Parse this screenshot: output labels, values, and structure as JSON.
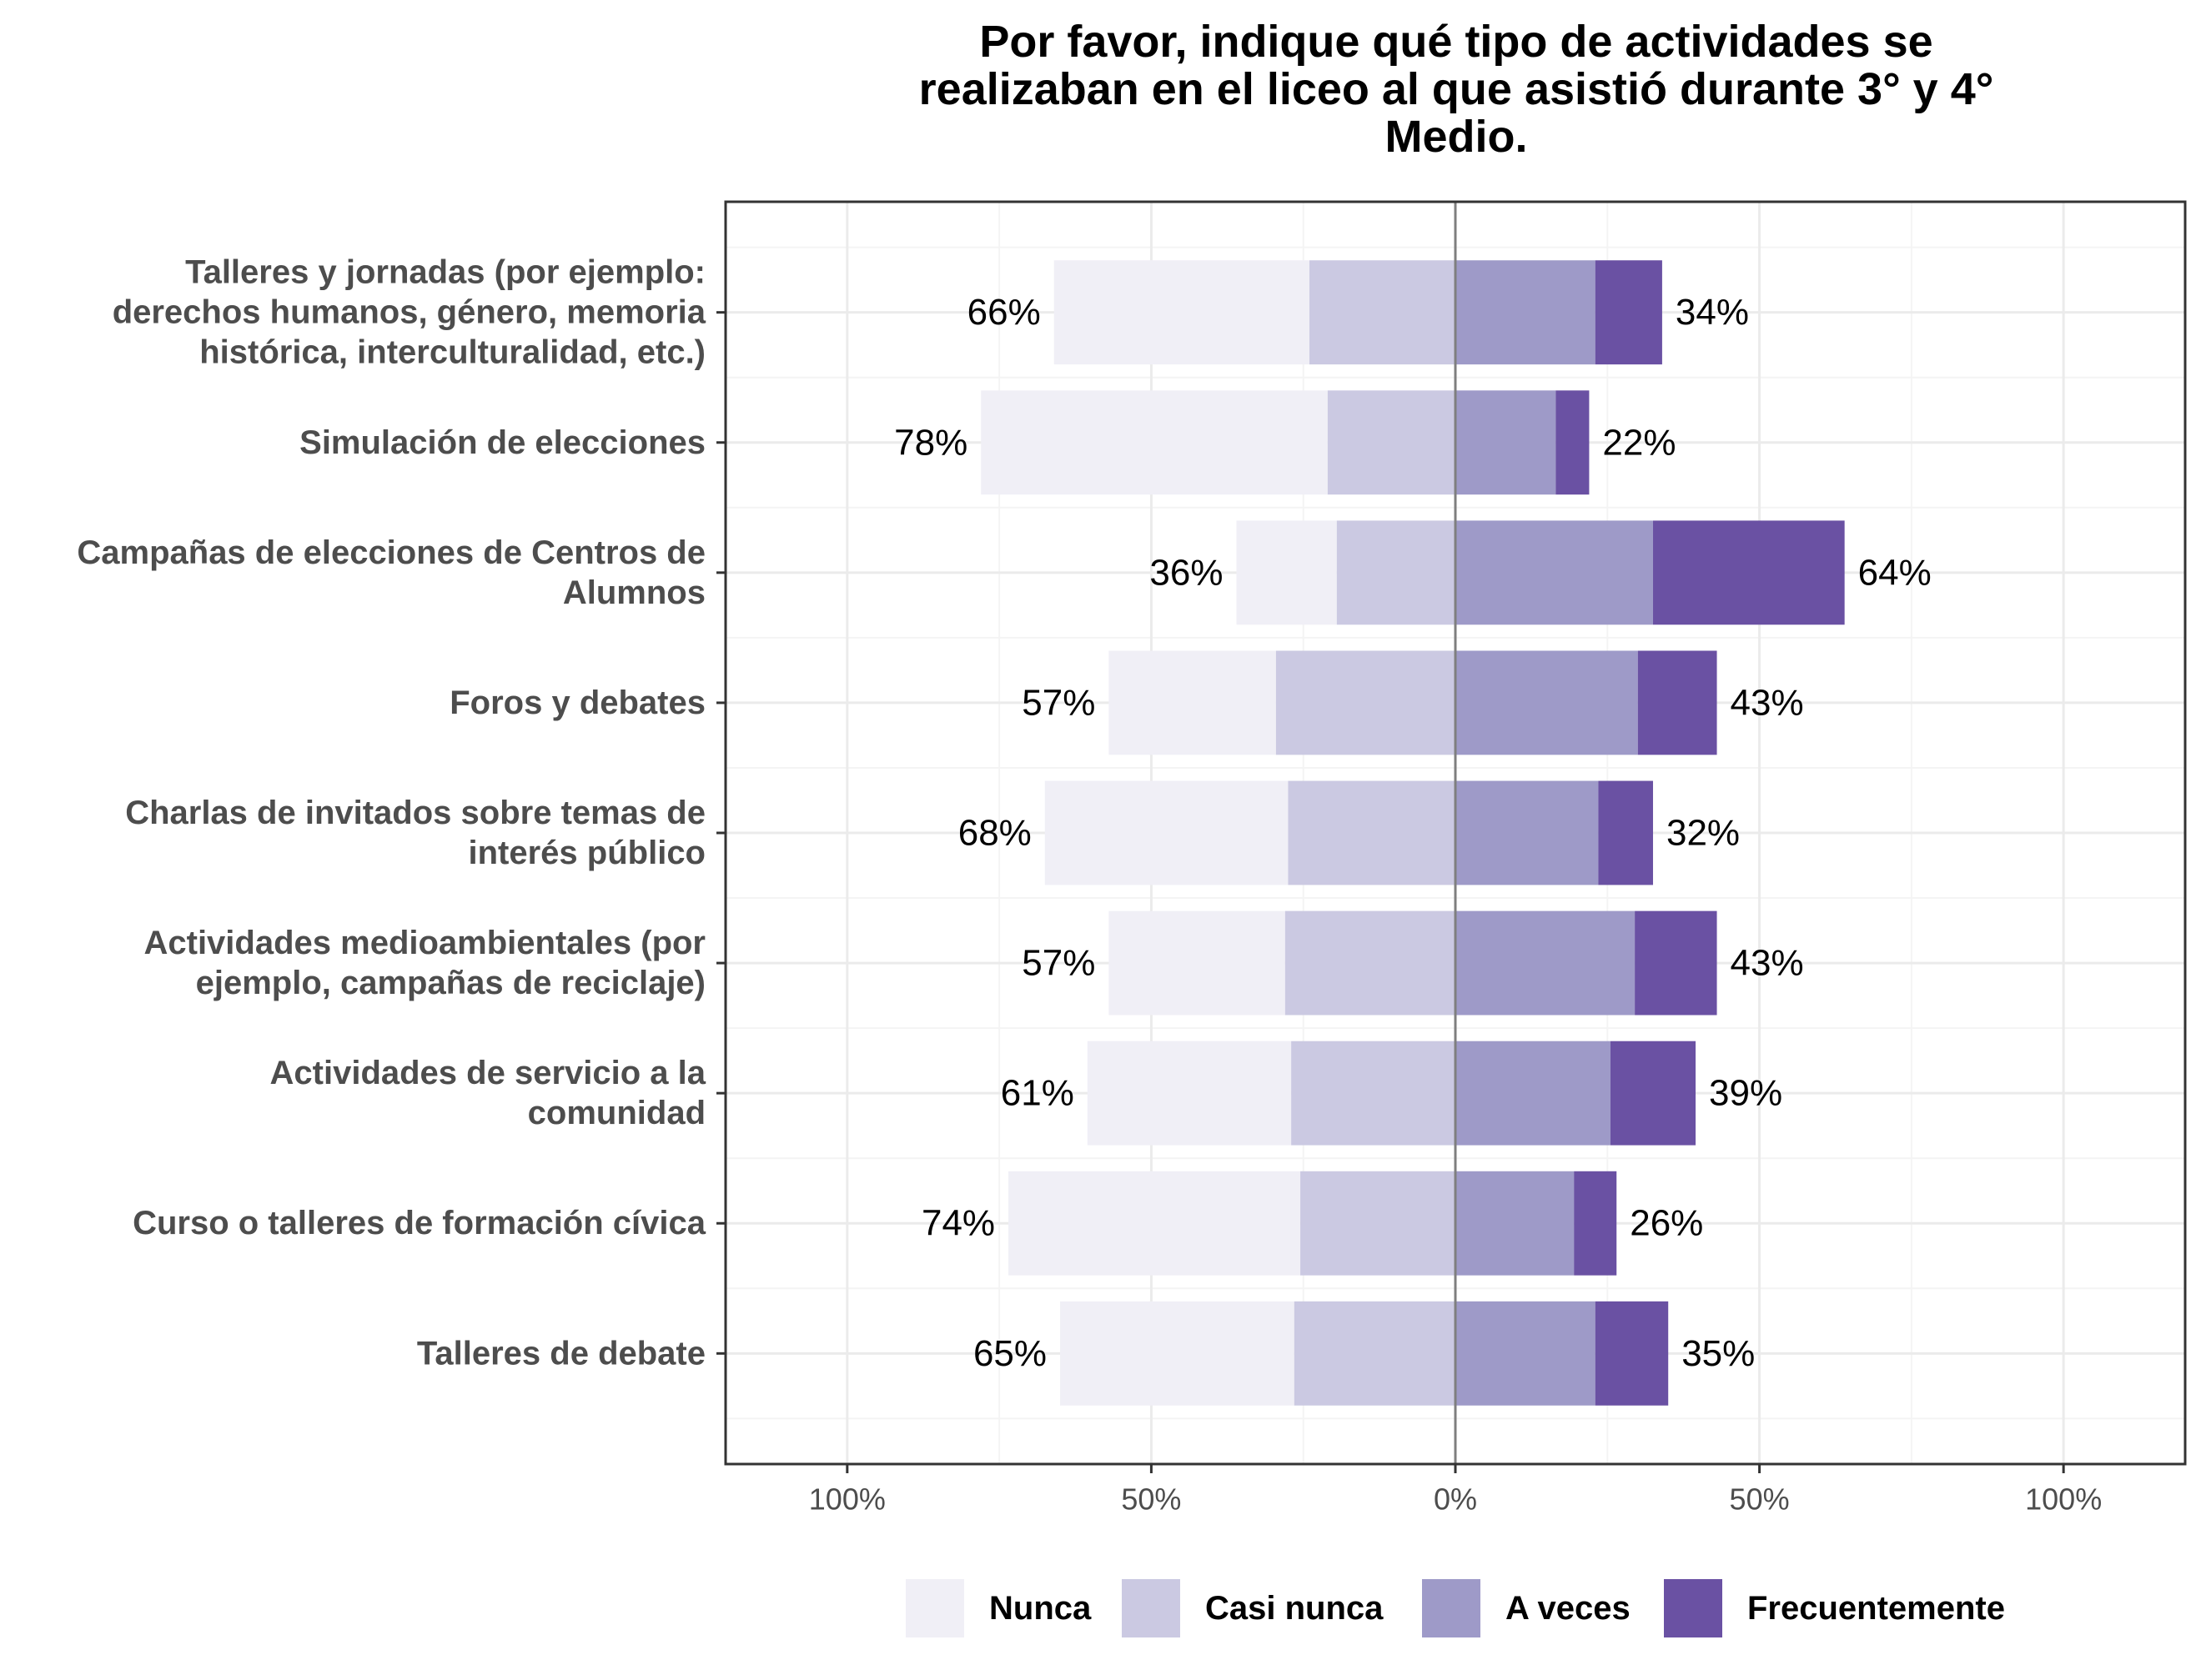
{
  "chart_data": {
    "type": "bar",
    "orientation": "horizontal-diverging",
    "title": [
      "Por favor, indique qué tipo de actividades se",
      "realizaban en el liceo al que asistió durante 3° y 4°",
      "Medio."
    ],
    "xlim": [
      -120,
      120
    ],
    "x_ticks": [
      -100,
      -50,
      0,
      50,
      100
    ],
    "x_tick_labels": [
      "100%",
      "50%",
      "0%",
      "50%",
      "100%"
    ],
    "grid": true,
    "legend_position": "bottom",
    "categories": [
      {
        "label": [
          "Talleres y jornadas (por ejemplo:",
          "derechos humanos, género, memoria",
          "histórica, interculturalidad, etc.)"
        ],
        "values": [
          42,
          24,
          23,
          11
        ],
        "left_label": "66%",
        "right_label": "34%"
      },
      {
        "label": [
          "Simulación de elecciones"
        ],
        "values": [
          57,
          21,
          16.5,
          5.5
        ],
        "left_label": "78%",
        "right_label": "22%"
      },
      {
        "label": [
          "Campañas de elecciones de Centros de",
          "Alumnos"
        ],
        "values": [
          16.5,
          19.5,
          32.5,
          31.5
        ],
        "left_label": "36%",
        "right_label": "64%"
      },
      {
        "label": [
          "Foros y debates"
        ],
        "values": [
          27.5,
          29.5,
          30,
          13
        ],
        "left_label": "57%",
        "right_label": "43%"
      },
      {
        "label": [
          "Charlas de invitados sobre temas de",
          "interés público"
        ],
        "values": [
          40,
          27.5,
          23.5,
          9
        ],
        "left_label": "68%",
        "right_label": "32%"
      },
      {
        "label": [
          "Actividades medioambientales (por",
          "ejemplo, campañas de reciclaje)"
        ],
        "values": [
          29,
          28,
          29.5,
          13.5
        ],
        "left_label": "57%",
        "right_label": "43%"
      },
      {
        "label": [
          "Actividades de servicio a la",
          "comunidad"
        ],
        "values": [
          33.5,
          27,
          25.5,
          14
        ],
        "left_label": "61%",
        "right_label": "39%"
      },
      {
        "label": [
          "Curso o talleres de formación cívica"
        ],
        "values": [
          48,
          25.5,
          19.5,
          7
        ],
        "left_label": "74%",
        "right_label": "26%"
      },
      {
        "label": [
          "Talleres de debate"
        ],
        "values": [
          38.5,
          26.5,
          23,
          12
        ],
        "left_label": "65%",
        "right_label": "35%"
      }
    ],
    "series": [
      {
        "name": "Nunca",
        "side": "negative",
        "color": "#f0eff6"
      },
      {
        "name": "Casi nunca",
        "side": "negative",
        "color": "#cbc9e2"
      },
      {
        "name": "A veces",
        "side": "positive",
        "color": "#9e9ac8"
      },
      {
        "name": "Frecuentemente",
        "side": "positive",
        "color": "#6a51a3"
      }
    ],
    "colors": {
      "panel_border": "#333333",
      "grid_major": "#ebebeb",
      "grid_minor": "#f4f4f4",
      "zero_line": "#7f7f7f"
    }
  }
}
